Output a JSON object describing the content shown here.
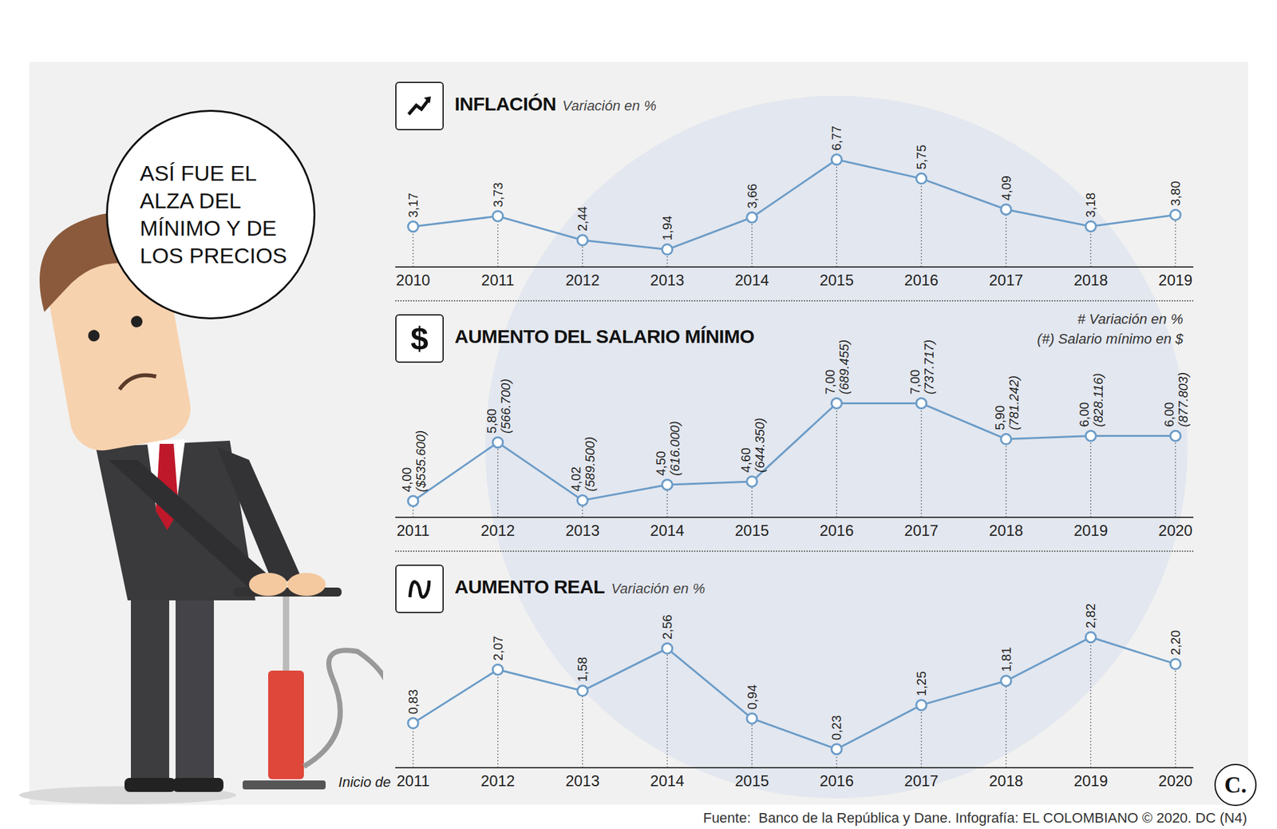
{
  "speech_bubble": [
    "ASÍ FUE EL",
    "ALZA DEL",
    "MÍNIMO Y DE",
    "LOS PRECIOS"
  ],
  "chart_data": [
    {
      "type": "line",
      "title": "INFLACIÓN",
      "subtitle": "Variación en %",
      "categories": [
        "2010",
        "2011",
        "2012",
        "2013",
        "2014",
        "2015",
        "2016",
        "2017",
        "2018",
        "2019"
      ],
      "values": [
        3.17,
        3.73,
        2.44,
        1.94,
        3.66,
        6.77,
        5.75,
        4.09,
        3.18,
        3.8
      ],
      "value_labels": [
        "3,17",
        "3,73",
        "2,44",
        "1,94",
        "3,66",
        "6,77",
        "5,75",
        "4,09",
        "3,18",
        "3,80"
      ],
      "ylim": [
        1,
        8
      ],
      "color": "#6b9cc8",
      "marker": "circle",
      "data_labels": true,
      "tick_labels": "x"
    },
    {
      "type": "line",
      "title": "AUMENTO DEL SALARIO MÍNIMO",
      "icon": "$",
      "notes": [
        "# Variación en %",
        "(#) Salario mínimo en $"
      ],
      "categories": [
        "2011",
        "2012",
        "2013",
        "2014",
        "2015",
        "2016",
        "2017",
        "2018",
        "2019",
        "2020"
      ],
      "values": [
        4.0,
        5.8,
        4.02,
        4.5,
        4.6,
        7.0,
        7.0,
        5.9,
        6.0,
        6.0
      ],
      "value_labels": [
        "4,00",
        "5,80",
        "4,02",
        "4,50",
        "4,60",
        "7,00",
        "7,00",
        "5,90",
        "6,00",
        "6,00"
      ],
      "wage_labels": [
        "($535.600)",
        "(566.700)",
        "(589.500)",
        "(616.000)",
        "(644.350)",
        "(689.455)",
        "(737.717)",
        "(781.242)",
        "(828.116)",
        "(877.803)"
      ],
      "ylim": [
        3.5,
        7.5
      ],
      "color": "#6b9cc8",
      "marker": "circle",
      "data_labels": true,
      "tick_labels": "x"
    },
    {
      "type": "line",
      "title": "AUMENTO REAL",
      "subtitle": "Variación en %",
      "xlabel": "Inicio de",
      "categories": [
        "2011",
        "2012",
        "2013",
        "2014",
        "2015",
        "2016",
        "2017",
        "2018",
        "2019",
        "2020"
      ],
      "values": [
        0.83,
        2.07,
        1.58,
        2.56,
        0.94,
        0.23,
        1.25,
        1.81,
        2.82,
        2.2
      ],
      "value_labels": [
        "0,83",
        "2,07",
        "1,58",
        "2,56",
        "0,94",
        "0,23",
        "1,25",
        "1,81",
        "2,82",
        "2,20"
      ],
      "ylim": [
        -0.2,
        3.2
      ],
      "color": "#6b9cc8",
      "marker": "circle",
      "data_labels": true,
      "tick_labels": "x"
    }
  ],
  "source": "Fuente:  Banco de la República y Dane. Infografía: EL COLOMBIANO © 2020. DC (N4)",
  "logo": "C."
}
